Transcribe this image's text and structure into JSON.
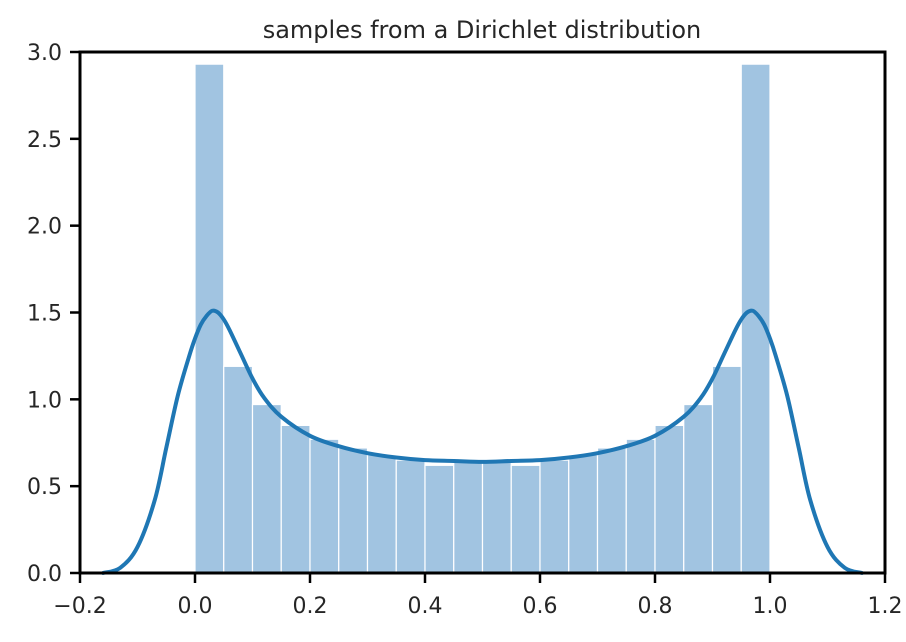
{
  "chart_data": {
    "type": "bar",
    "title": "samples from a Dirichlet distribution",
    "xlabel": "",
    "ylabel": "",
    "xlim": [
      -0.2,
      1.2
    ],
    "ylim": [
      0,
      3.0
    ],
    "xticks": [
      -0.2,
      0.0,
      0.2,
      0.4,
      0.6,
      0.8,
      1.0,
      1.2
    ],
    "xtick_labels": [
      "−0.2",
      "0.0",
      "0.2",
      "0.4",
      "0.6",
      "0.8",
      "1.0",
      "1.2"
    ],
    "yticks": [
      0.0,
      0.5,
      1.0,
      1.5,
      2.0,
      2.5,
      3.0
    ],
    "ytick_labels": [
      "0.0",
      "0.5",
      "1.0",
      "1.5",
      "2.0",
      "2.5",
      "3.0"
    ],
    "grid": false,
    "histogram": {
      "bin_edges": [
        0.0,
        0.05,
        0.1,
        0.15,
        0.2,
        0.25,
        0.3,
        0.35,
        0.4,
        0.45,
        0.5,
        0.55,
        0.6,
        0.65,
        0.7,
        0.75,
        0.8,
        0.85,
        0.9,
        0.95,
        1.0
      ],
      "values": [
        2.93,
        1.19,
        0.97,
        0.85,
        0.77,
        0.72,
        0.68,
        0.65,
        0.62,
        0.65,
        0.65,
        0.62,
        0.65,
        0.68,
        0.72,
        0.77,
        0.85,
        0.97,
        1.19,
        2.93
      ],
      "color": "#a1c4e1"
    },
    "kde": {
      "x": [
        -0.16,
        -0.13,
        -0.1,
        -0.07,
        -0.05,
        -0.03,
        -0.01,
        0.0,
        0.01,
        0.02,
        0.03,
        0.04,
        0.05,
        0.06,
        0.08,
        0.1,
        0.12,
        0.15,
        0.2,
        0.25,
        0.3,
        0.35,
        0.4,
        0.45,
        0.5,
        0.55,
        0.6,
        0.65,
        0.7,
        0.75,
        0.8,
        0.85,
        0.88,
        0.9,
        0.92,
        0.94,
        0.95,
        0.96,
        0.97,
        0.98,
        0.99,
        1.0,
        1.01,
        1.03,
        1.05,
        1.07,
        1.1,
        1.13,
        1.16
      ],
      "y": [
        0.0,
        0.03,
        0.15,
        0.42,
        0.72,
        1.02,
        1.25,
        1.35,
        1.43,
        1.48,
        1.51,
        1.5,
        1.46,
        1.4,
        1.26,
        1.12,
        1.01,
        0.9,
        0.79,
        0.73,
        0.69,
        0.665,
        0.65,
        0.645,
        0.64,
        0.645,
        0.65,
        0.665,
        0.69,
        0.73,
        0.79,
        0.9,
        1.01,
        1.12,
        1.26,
        1.4,
        1.46,
        1.5,
        1.51,
        1.48,
        1.43,
        1.35,
        1.25,
        1.02,
        0.72,
        0.42,
        0.15,
        0.03,
        0.0
      ],
      "color": "#1f77b4"
    }
  }
}
